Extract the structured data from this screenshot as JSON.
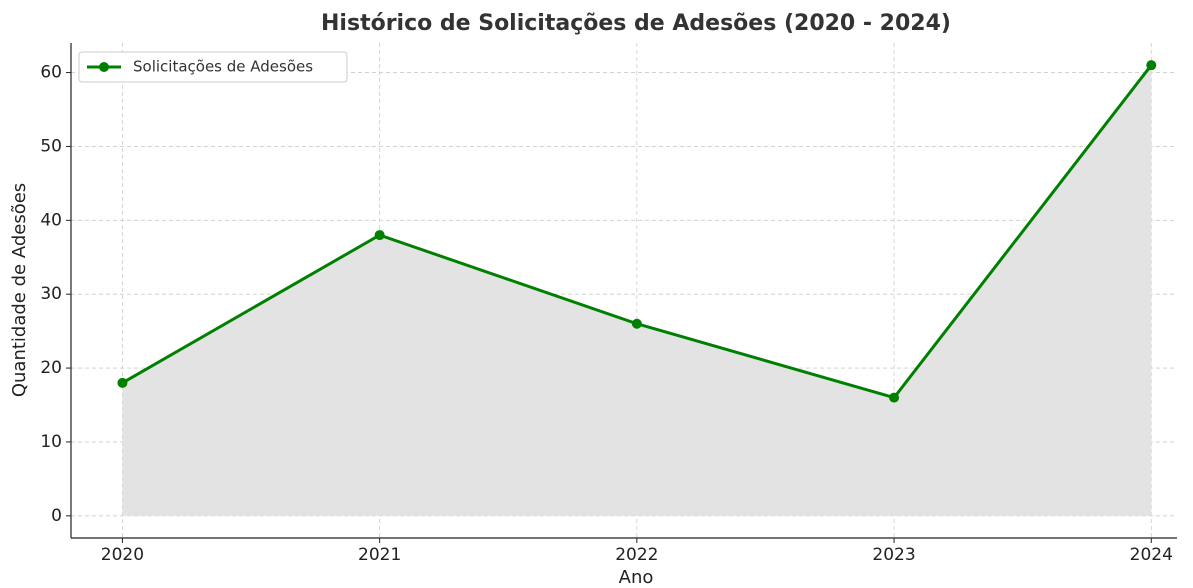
{
  "chart_data": {
    "type": "line",
    "title": "Histórico de Solicitações de Adesões (2020 - 2024)",
    "xlabel": "Ano",
    "ylabel": "Quantidade de Adesões",
    "x": [
      2020,
      2021,
      2022,
      2023,
      2024
    ],
    "series": [
      {
        "name": "Solicitações de Adesões",
        "color": "#008000",
        "values": [
          18,
          38,
          26,
          16,
          61
        ]
      }
    ],
    "fill": true,
    "fill_color": "#e3e3e3",
    "xlim": [
      2019.8,
      2024.1
    ],
    "xticks": [
      2020,
      2021,
      2022,
      2023,
      2024
    ],
    "ylim": [
      -3,
      64
    ],
    "yticks": [
      0,
      10,
      20,
      30,
      40,
      50,
      60
    ],
    "grid": true,
    "legend": "upper left"
  }
}
